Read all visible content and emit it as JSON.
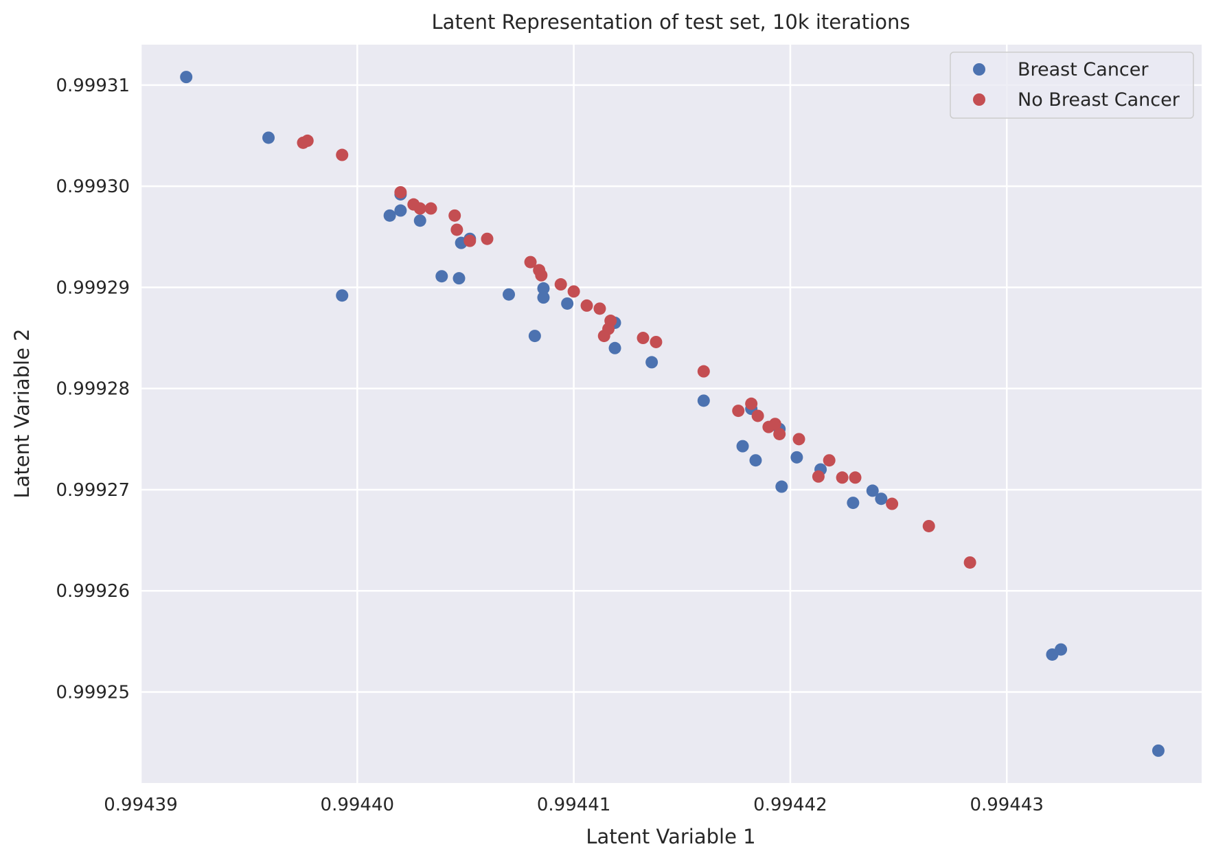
{
  "chart_data": {
    "type": "scatter",
    "title": "Latent Representation of test set, 10k iterations",
    "xlabel": "Latent Variable 1",
    "ylabel": "Latent Variable 2",
    "xlim": [
      0.99439,
      0.994439
    ],
    "ylim": [
      0.999241,
      0.999314
    ],
    "x_ticks": [
      0.99439,
      0.9944,
      0.99441,
      0.99442,
      0.99443
    ],
    "x_tick_labels": [
      "0.99439",
      "0.99440",
      "0.99441",
      "0.99442",
      "0.99443"
    ],
    "y_ticks": [
      0.99925,
      0.99926,
      0.99927,
      0.99928,
      0.99929,
      0.9993,
      0.99931
    ],
    "y_tick_labels": [
      "0.99925",
      "0.99926",
      "0.99927",
      "0.99928",
      "0.99929",
      "0.99930",
      "0.99931"
    ],
    "grid": true,
    "legend_position": "top-right",
    "series": [
      {
        "name": "Breast Cancer",
        "color": "#4c72b0",
        "points": [
          [
            0.9943921,
            0.9993108
          ],
          [
            0.9943959,
            0.9993048
          ],
          [
            0.9943993,
            0.9992892
          ],
          [
            0.9944015,
            0.9992971
          ],
          [
            0.994402,
            0.9992976
          ],
          [
            0.994402,
            0.9992992
          ],
          [
            0.9944029,
            0.9992966
          ],
          [
            0.9944039,
            0.9992911
          ],
          [
            0.9944047,
            0.9992909
          ],
          [
            0.9944048,
            0.9992944
          ],
          [
            0.9944052,
            0.9992948
          ],
          [
            0.994407,
            0.9992893
          ],
          [
            0.9944082,
            0.9992852
          ],
          [
            0.9944086,
            0.9992899
          ],
          [
            0.9944086,
            0.999289
          ],
          [
            0.9944097,
            0.9992884
          ],
          [
            0.9944119,
            0.9992865
          ],
          [
            0.9944119,
            0.999284
          ],
          [
            0.9944136,
            0.9992826
          ],
          [
            0.994416,
            0.9992788
          ],
          [
            0.9944178,
            0.9992743
          ],
          [
            0.9944182,
            0.999278
          ],
          [
            0.9944184,
            0.9992729
          ],
          [
            0.9944195,
            0.999276
          ],
          [
            0.9944196,
            0.9992703
          ],
          [
            0.9944203,
            0.9992732
          ],
          [
            0.9944214,
            0.999272
          ],
          [
            0.9944229,
            0.9992687
          ],
          [
            0.9944238,
            0.9992699
          ],
          [
            0.9944242,
            0.9992691
          ],
          [
            0.9944321,
            0.9992537
          ],
          [
            0.9944325,
            0.9992542
          ],
          [
            0.994437,
            0.9992442
          ]
        ]
      },
      {
        "name": "No Breast Cancer",
        "color": "#c44e52",
        "points": [
          [
            0.9943975,
            0.9993043
          ],
          [
            0.9943977,
            0.9993045
          ],
          [
            0.9943993,
            0.9993031
          ],
          [
            0.994402,
            0.9992994
          ],
          [
            0.9944026,
            0.9992982
          ],
          [
            0.9944029,
            0.9992978
          ],
          [
            0.9944034,
            0.9992978
          ],
          [
            0.9944045,
            0.9992971
          ],
          [
            0.9944046,
            0.9992957
          ],
          [
            0.9944052,
            0.9992946
          ],
          [
            0.994406,
            0.9992948
          ],
          [
            0.994408,
            0.9992925
          ],
          [
            0.9944084,
            0.9992917
          ],
          [
            0.9944085,
            0.9992912
          ],
          [
            0.9944094,
            0.9992903
          ],
          [
            0.99441,
            0.9992896
          ],
          [
            0.9944106,
            0.9992882
          ],
          [
            0.9944112,
            0.9992879
          ],
          [
            0.9944117,
            0.9992867
          ],
          [
            0.9944116,
            0.9992859
          ],
          [
            0.9944114,
            0.9992852
          ],
          [
            0.9944132,
            0.999285
          ],
          [
            0.9944138,
            0.9992846
          ],
          [
            0.994416,
            0.9992817
          ],
          [
            0.9944176,
            0.9992778
          ],
          [
            0.9944182,
            0.9992785
          ],
          [
            0.9944185,
            0.9992773
          ],
          [
            0.994419,
            0.9992762
          ],
          [
            0.9944193,
            0.9992765
          ],
          [
            0.9944195,
            0.9992755
          ],
          [
            0.9944204,
            0.999275
          ],
          [
            0.9944213,
            0.9992713
          ],
          [
            0.9944218,
            0.9992729
          ],
          [
            0.9944224,
            0.9992712
          ],
          [
            0.994423,
            0.9992712
          ],
          [
            0.9944247,
            0.9992686
          ],
          [
            0.9944264,
            0.9992664
          ],
          [
            0.9944283,
            0.9992628
          ]
        ]
      }
    ]
  }
}
